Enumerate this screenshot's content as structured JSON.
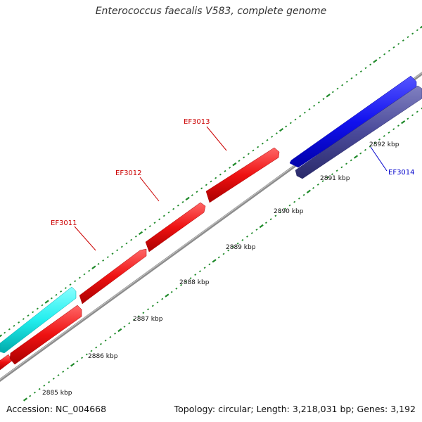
{
  "title": "Enterococcus faecalis V583, complete genome",
  "footer": {
    "accession": "Accession: NC_004668",
    "topology": "Topology: circular; Length: 3,218,031 bp; Genes: 3,192"
  },
  "scale_labels": [
    {
      "id": "2885",
      "text": "2885 kbp"
    },
    {
      "id": "2886",
      "text": "2886 kbp"
    },
    {
      "id": "2887",
      "text": "2887 kbp"
    },
    {
      "id": "2888",
      "text": "2888 kbp"
    },
    {
      "id": "2889",
      "text": "2889 kbp"
    },
    {
      "id": "2890",
      "text": "2890 kbp"
    },
    {
      "id": "2891",
      "text": "2891 kbp"
    },
    {
      "id": "2892",
      "text": "2892 kbp"
    }
  ],
  "gene_labels": [
    {
      "id": "EF3011",
      "text": "EF3011",
      "color": "#cc0000"
    },
    {
      "id": "EF3012",
      "text": "EF3012",
      "color": "#cc0000"
    },
    {
      "id": "EF3013",
      "text": "EF3013",
      "color": "#cc0000"
    },
    {
      "id": "EF3014",
      "text": "EF3014",
      "color": "#0000cc"
    }
  ],
  "colors": {
    "backbone": "#8c8c8c",
    "tick": "#1f8a2a",
    "forward_gene": "#ee1111",
    "reverse_gene_dark": "#4a4a9a",
    "reverse_gene_blue": "#1111ee",
    "rna_gene": "#22eeee"
  }
}
